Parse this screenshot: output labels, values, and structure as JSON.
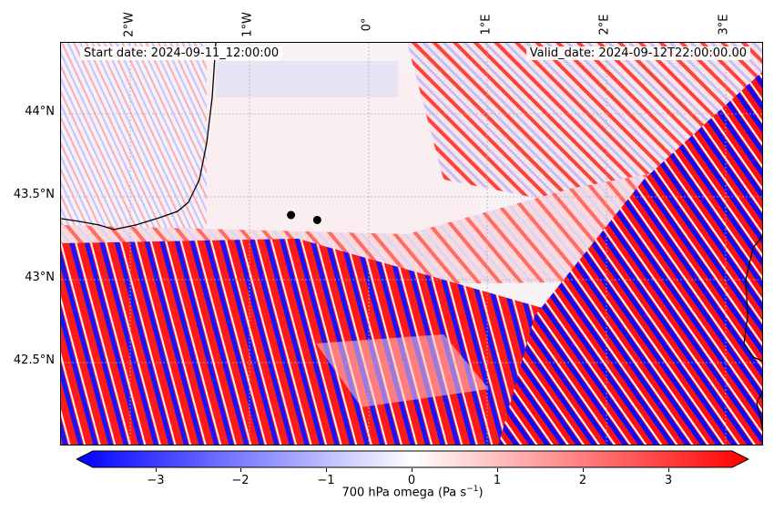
{
  "header": {
    "start_label": "Start date: 2024-09-11_12:00:00",
    "valid_label": "Valid_date: 2024-09-12T22:00:00.00"
  },
  "axes": {
    "longitude_ticks": [
      "2°W",
      "1°W",
      "0°",
      "1°E",
      "2°E",
      "3°E"
    ],
    "latitude_ticks": [
      "44°N",
      "43.5°N",
      "43°N",
      "42.5°N"
    ]
  },
  "colorbar": {
    "ticks": [
      "−3",
      "−2",
      "−1",
      "0",
      "1",
      "2",
      "3"
    ],
    "label_text": "700 hPa omega (Pa s",
    "label_exp": "−1",
    "label_close": ")",
    "range": [
      -3.5,
      3.5
    ],
    "colors": {
      "low": "#0000ff",
      "mid": "#ffffff",
      "high": "#ff0000"
    }
  },
  "map": {
    "markers": [
      {
        "name": "point-1",
        "lon": -0.65,
        "lat": 43.39
      },
      {
        "name": "point-2",
        "lon": -0.43,
        "lat": 43.36
      }
    ]
  }
}
